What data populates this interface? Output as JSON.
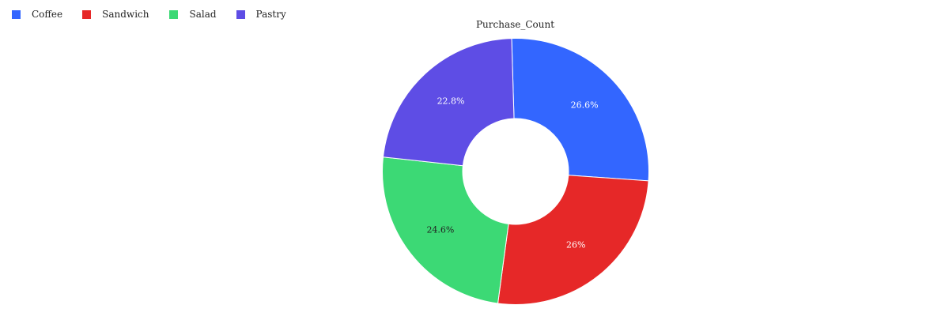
{
  "chart_data": {
    "type": "pie",
    "variant": "donut",
    "title": "Purchase_Count",
    "categories": [
      "Coffee",
      "Sandwich",
      "Salad",
      "Pastry"
    ],
    "values": [
      26.6,
      26.0,
      24.6,
      22.8
    ],
    "labels": [
      "26.6%",
      "26%",
      "24.6%",
      "22.8%"
    ],
    "colors": [
      "#3366ff",
      "#e62828",
      "#3cd975",
      "#5e4de5"
    ],
    "label_colors": [
      "#ffffff",
      "#ffffff",
      "#222222",
      "#ffffff"
    ],
    "legend_position": "top-left"
  }
}
